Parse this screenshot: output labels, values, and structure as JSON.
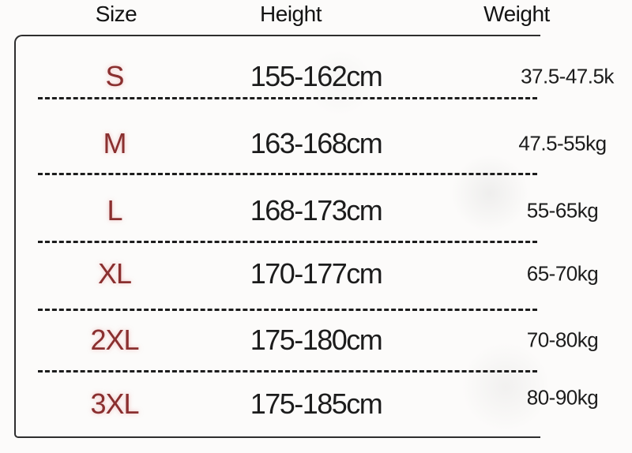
{
  "title": "size-chart",
  "chart_data": {
    "type": "table",
    "columns": [
      "Size",
      "Height",
      "Weight"
    ],
    "rows": [
      [
        "S",
        "155-162cm",
        "37.5-47.5k"
      ],
      [
        "M",
        "163-168cm",
        "47.5-55kg"
      ],
      [
        "L",
        "168-173cm",
        "55-65kg"
      ],
      [
        "XL",
        "170-177cm",
        "65-70kg"
      ],
      [
        "2XL",
        "175-180cm",
        "70-80kg"
      ],
      [
        "3XL",
        "175-185cm",
        "80-90kg"
      ]
    ],
    "notes": "first row weight unit clipped at right image edge",
    "layout": {
      "grid": "dashed horizontal separators between rows",
      "border": "rounded rectangle open on right side"
    }
  },
  "colors": {
    "size_label": "#8a2f2f",
    "body_text": "#1c1c1c",
    "border": "#2e2e2e",
    "background": "#fcfbfa"
  }
}
